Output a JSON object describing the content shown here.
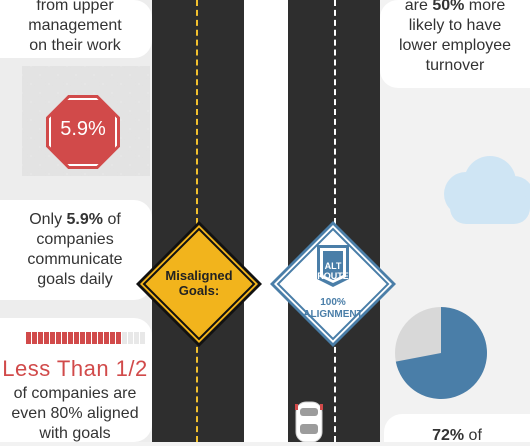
{
  "left_panel": {
    "top_text": {
      "line1": "from upper",
      "line2": "management",
      "line3": "on their work"
    },
    "stat_5_9": {
      "badge": "5.9%",
      "prefix": "Only ",
      "value": "5.9%",
      "suffix": " of",
      "line2": "companies",
      "line3": "communicate",
      "line4": "goals daily"
    },
    "less_than_half": {
      "headline": "Less Than 1/2",
      "line1": "of companies are",
      "line2": "even 80% aligned",
      "line3": "with goals",
      "progress_percent": 80
    }
  },
  "signs": {
    "misaligned": {
      "line1": "Misaligned",
      "line2": "Goals:"
    },
    "aligned": {
      "shield_line1": "ALT",
      "shield_line2": "ROUTE",
      "line1": "100%",
      "line2": "ALIGNMENT"
    }
  },
  "right_panel": {
    "top_text": {
      "prefix": "are ",
      "value": "50%",
      "suffix": " more",
      "line2": "likely to have",
      "line3": "lower employee",
      "line4": "turnover"
    },
    "bottom_text": {
      "value": "72%",
      "suffix": " of"
    },
    "pie_percent": 72
  },
  "colors": {
    "red": "#d14a4a",
    "yellow": "#f2b41c",
    "blue": "#4a7ea8",
    "road": "#2e2e2e"
  }
}
